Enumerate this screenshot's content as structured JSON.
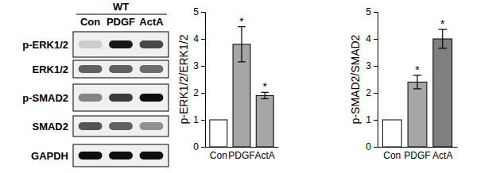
{
  "blot": {
    "group": "WT",
    "lanes": [
      "Con",
      "PDGF",
      "ActA"
    ],
    "rows": [
      {
        "label": "p-ERK1/2",
        "bands": [
          0.15,
          0.9,
          0.7
        ]
      },
      {
        "label": "ERK1/2",
        "bands": [
          0.6,
          0.6,
          0.55
        ]
      },
      {
        "label": "p-SMAD2",
        "bands": [
          0.45,
          0.75,
          0.95
        ]
      },
      {
        "label": "SMAD2",
        "bands": [
          0.65,
          0.6,
          0.4
        ]
      },
      {
        "label": "GAPDH",
        "bands": [
          0.95,
          0.95,
          0.95
        ]
      }
    ]
  },
  "chart_data": [
    {
      "type": "bar",
      "y_label": "p-ERK1/2/ERK1/2",
      "categories": [
        "Con",
        "PDGF",
        "ActA"
      ],
      "values": [
        1,
        3.8,
        1.9
      ],
      "errors": [
        null,
        0.65,
        0.12
      ],
      "annotations": [
        null,
        "*",
        "*"
      ],
      "colors": [
        "#ffffff",
        "#a6a6a6",
        "#a6a6a6"
      ],
      "ylim": [
        0,
        5
      ],
      "yticks": [
        0,
        1,
        2,
        3,
        4,
        5
      ],
      "grid": false
    },
    {
      "type": "bar",
      "y_label": "p-SMAD2/SMAD2",
      "categories": [
        "Con",
        "PDGF",
        "ActA"
      ],
      "values": [
        1,
        2.4,
        4.0
      ],
      "errors": [
        null,
        0.25,
        0.35
      ],
      "annotations": [
        null,
        "*",
        "*"
      ],
      "colors": [
        "#ffffff",
        "#a6a6a6",
        "#7f7f7f"
      ],
      "ylim": [
        0,
        5
      ],
      "yticks": [
        0,
        1,
        2,
        3,
        4,
        5
      ],
      "grid": false
    }
  ]
}
